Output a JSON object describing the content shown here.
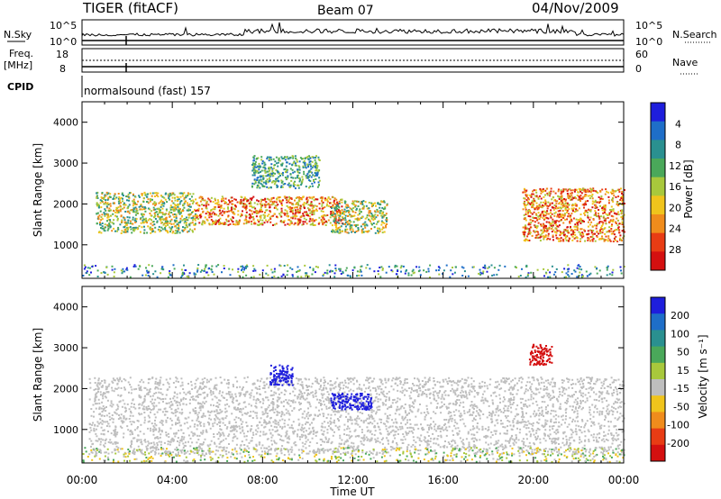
{
  "header": {
    "title": "TIGER (fitACF)",
    "beam": "Beam 07",
    "date": "04/Nov/2009",
    "nsky_label": "N.Sky",
    "nsearch_label": "N.Search",
    "freq_label": "Freq.",
    "freq_unit": "[MHz]",
    "nave_label": "Nave",
    "cpid_label": "CPID",
    "cpid_value": "normalsound (fast) 157",
    "sky_ticks_left": [
      "10^5",
      "10^0"
    ],
    "sky_ticks_right": [
      "10^5",
      "10^0"
    ],
    "freq_ticks_left": [
      "18",
      "8"
    ],
    "freq_ticks_right": [
      "60",
      "0"
    ]
  },
  "chart_data": [
    {
      "type": "heatmap",
      "title": "",
      "xlabel": "",
      "ylabel": "Slant Range [km]",
      "x_ticks": [
        "00:00",
        "04:00",
        "08:00",
        "12:00",
        "16:00",
        "20:00",
        "00:00"
      ],
      "y_ticks": [
        "1000",
        "2000",
        "3000",
        "4000"
      ],
      "xlim_hours": [
        0,
        24
      ],
      "ylim_km": [
        180,
        4500
      ],
      "colorbar": {
        "label": "Power [dB]",
        "ticks": [
          "4",
          "8",
          "12",
          "16",
          "20",
          "24",
          "28"
        ],
        "colors": [
          "#1e1edc",
          "#1e6ec8",
          "#2a9090",
          "#4aa85a",
          "#a8c83c",
          "#f0c41c",
          "#f08c1c",
          "#e83c14",
          "#d41010"
        ]
      },
      "bands": [
        {
          "t_start": 0.6,
          "t_end": 5.0,
          "r_low": 1300,
          "r_high": 2300,
          "level": "medium"
        },
        {
          "t_start": 5.0,
          "t_end": 11.5,
          "r_low": 1500,
          "r_high": 2200,
          "level": "high"
        },
        {
          "t_start": 7.5,
          "t_end": 10.5,
          "r_low": 2400,
          "r_high": 3200,
          "level": "low"
        },
        {
          "t_start": 11.0,
          "t_end": 13.5,
          "r_low": 1300,
          "r_high": 2100,
          "level": "medium"
        },
        {
          "t_start": 19.5,
          "t_end": 24.0,
          "r_low": 1100,
          "r_high": 2400,
          "level": "high"
        }
      ]
    },
    {
      "type": "heatmap",
      "title": "",
      "xlabel": "Time UT",
      "ylabel": "Slant Range [km]",
      "x_ticks": [
        "00:00",
        "04:00",
        "08:00",
        "12:00",
        "16:00",
        "20:00",
        "00:00"
      ],
      "y_ticks": [
        "1000",
        "2000",
        "3000",
        "4000"
      ],
      "xlim_hours": [
        0,
        24
      ],
      "ylim_km": [
        180,
        4500
      ],
      "colorbar": {
        "label": "Velocity [m s⁻¹]",
        "ticks": [
          "200",
          "100",
          "50",
          "15",
          "-15",
          "-50",
          "-100",
          "-200"
        ],
        "colors": [
          "#1e1edc",
          "#1e6ec8",
          "#2a9090",
          "#4aa85a",
          "#a8c83c",
          "#bebebe",
          "#f0c41c",
          "#f08c1c",
          "#e83c14",
          "#d41010"
        ]
      },
      "features": [
        {
          "t_start": 0.3,
          "t_end": 24.0,
          "r_low": 400,
          "r_high": 2300,
          "color": "#bebebe"
        },
        {
          "t_start": 8.3,
          "t_end": 9.3,
          "r_low": 2100,
          "r_high": 2600,
          "color": "#1e1edc"
        },
        {
          "t_start": 11.0,
          "t_end": 12.8,
          "r_low": 1500,
          "r_high": 1900,
          "color": "#1e1edc"
        },
        {
          "t_start": 19.8,
          "t_end": 20.8,
          "r_low": 2600,
          "r_high": 3100,
          "color": "#d41010"
        }
      ]
    }
  ]
}
